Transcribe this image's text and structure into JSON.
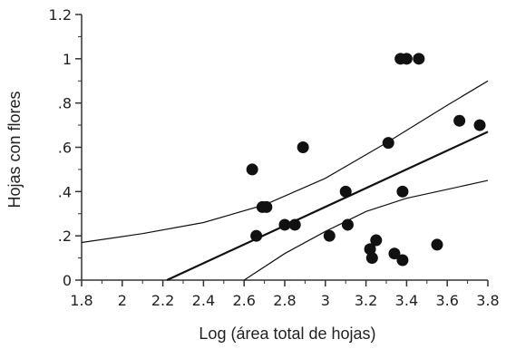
{
  "chart_data": {
    "type": "scatter",
    "title": "",
    "xlabel": "Log (área total de hojas)",
    "ylabel": "Hojas con flores",
    "xlim": [
      1.8,
      3.8
    ],
    "ylim": [
      0,
      1.2
    ],
    "x_ticks": [
      1.8,
      2,
      2.2,
      2.4,
      2.6,
      2.8,
      3,
      3.2,
      3.4,
      3.6,
      3.8
    ],
    "x_tick_labels": [
      "1.8",
      "2",
      "2.2",
      "2.4",
      "2.6",
      "2.8",
      "3",
      "3.2",
      "3.4",
      "3.6",
      "3.8"
    ],
    "y_ticks": [
      0,
      0.2,
      0.4,
      0.6,
      0.8,
      1,
      1.2
    ],
    "y_tick_labels": [
      "0",
      ".2",
      ".4",
      ".6",
      ".8",
      "1",
      "1.2"
    ],
    "grid": false,
    "points": [
      {
        "x": 2.64,
        "y": 0.5
      },
      {
        "x": 2.66,
        "y": 0.2
      },
      {
        "x": 2.69,
        "y": 0.33
      },
      {
        "x": 2.71,
        "y": 0.33
      },
      {
        "x": 2.8,
        "y": 0.25
      },
      {
        "x": 2.85,
        "y": 0.25
      },
      {
        "x": 2.89,
        "y": 0.6
      },
      {
        "x": 3.02,
        "y": 0.2
      },
      {
        "x": 3.1,
        "y": 0.4
      },
      {
        "x": 3.11,
        "y": 0.25
      },
      {
        "x": 3.22,
        "y": 0.14
      },
      {
        "x": 3.23,
        "y": 0.1
      },
      {
        "x": 3.25,
        "y": 0.18
      },
      {
        "x": 3.31,
        "y": 0.62
      },
      {
        "x": 3.34,
        "y": 0.12
      },
      {
        "x": 3.37,
        "y": 1
      },
      {
        "x": 3.38,
        "y": 0.4
      },
      {
        "x": 3.38,
        "y": 0.09
      },
      {
        "x": 3.4,
        "y": 1
      },
      {
        "x": 3.46,
        "y": 1
      },
      {
        "x": 3.55,
        "y": 0.16
      },
      {
        "x": 3.66,
        "y": 0.72
      },
      {
        "x": 3.76,
        "y": 0.7
      }
    ],
    "regression_line": [
      [
        2.22,
        0
      ],
      [
        3.8,
        0.67
      ]
    ],
    "upper_confidence_band": [
      [
        1.8,
        0.17
      ],
      [
        2.1,
        0.21
      ],
      [
        2.4,
        0.26
      ],
      [
        2.7,
        0.34
      ],
      [
        3.0,
        0.46
      ],
      [
        3.3,
        0.62
      ],
      [
        3.6,
        0.79
      ],
      [
        3.8,
        0.9
      ]
    ],
    "lower_confidence_band": [
      [
        2.6,
        0
      ],
      [
        2.8,
        0.12
      ],
      [
        3.0,
        0.22
      ],
      [
        3.2,
        0.31
      ],
      [
        3.4,
        0.37
      ],
      [
        3.6,
        0.41
      ],
      [
        3.8,
        0.45
      ]
    ],
    "colors": {
      "points": "#111111",
      "lines": "#111111",
      "axis": "#333333",
      "text": "#222222"
    }
  }
}
